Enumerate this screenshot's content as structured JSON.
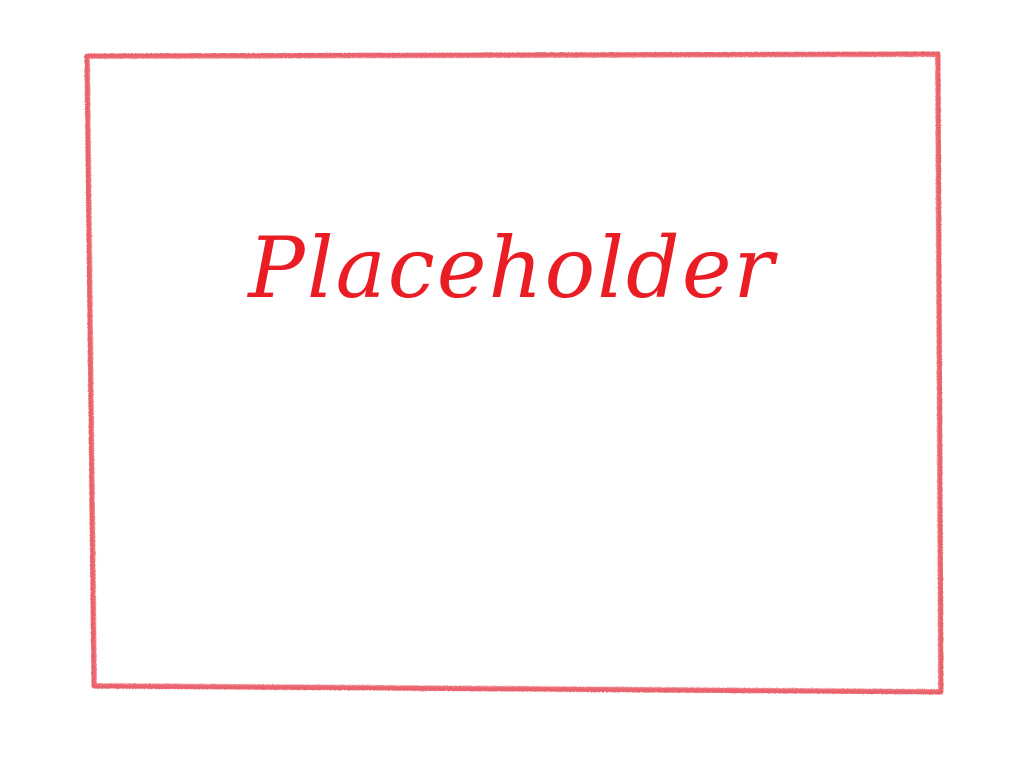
{
  "placeholder": {
    "text": "Placeholder",
    "text_color": "#ea1c24",
    "frame_color": "#e8515b"
  }
}
